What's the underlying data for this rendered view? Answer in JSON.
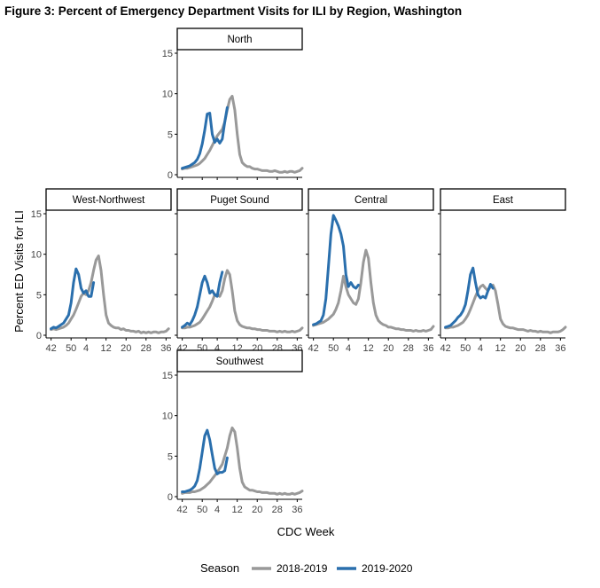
{
  "figure": {
    "title": "Figure 3: Percent of Emergency Department Visits for ILI by Region, Washington"
  },
  "chart_data": {
    "type": "line",
    "title": "Figure 3: Percent of Emergency Department Visits for ILI by Region, Washington",
    "xlabel": "CDC Week",
    "ylabel": "Percent ED Visits for ILI",
    "ylim": [
      0,
      15
    ],
    "y_ticks": [
      0,
      5,
      10,
      15
    ],
    "x_ticks": [
      "42",
      "50",
      "4",
      "12",
      "20",
      "28",
      "36"
    ],
    "x_tick_positions": [
      0,
      8,
      14,
      22,
      30,
      38,
      46
    ],
    "x_range": [
      -2,
      48
    ],
    "grid": false,
    "legend": {
      "title": "Season",
      "placement": "bottom",
      "entries": [
        {
          "name": "2018-2019",
          "color": "#999999"
        },
        {
          "name": "2019-2020",
          "color": "#2a6fad"
        }
      ]
    },
    "panels": [
      {
        "name": "North",
        "series": [
          {
            "name": "2018-2019",
            "values": [
              0.7,
              0.8,
              0.8,
              0.9,
              1.0,
              1.1,
              1.2,
              1.4,
              1.7,
              2.0,
              2.5,
              3.0,
              3.6,
              4.2,
              4.8,
              5.2,
              5.6,
              6.5,
              8.0,
              9.3,
              9.7,
              8.0,
              5.0,
              2.5,
              1.5,
              1.2,
              1.0,
              1.0,
              0.8,
              0.7,
              0.7,
              0.6,
              0.5,
              0.5,
              0.5,
              0.4,
              0.4,
              0.5,
              0.4,
              0.3,
              0.3,
              0.4,
              0.3,
              0.4,
              0.4,
              0.3,
              0.4,
              0.5,
              0.8
            ]
          },
          {
            "name": "2019-2020",
            "values": [
              0.8,
              0.9,
              1.0,
              1.1,
              1.3,
              1.5,
              1.9,
              2.6,
              3.8,
              5.5,
              7.5,
              7.6,
              5.0,
              4.0,
              4.4,
              3.9,
              4.4,
              6.5,
              8.3
            ]
          }
        ]
      },
      {
        "name": "West-Northwest",
        "series": [
          {
            "name": "2018-2019",
            "values": [
              0.7,
              0.8,
              0.7,
              0.8,
              0.9,
              1.0,
              1.2,
              1.5,
              2.0,
              2.5,
              3.2,
              4.0,
              4.8,
              5.2,
              5.0,
              5.5,
              6.5,
              8.0,
              9.3,
              9.8,
              8.0,
              5.0,
              2.5,
              1.5,
              1.2,
              1.0,
              0.9,
              0.9,
              0.7,
              0.8,
              0.6,
              0.6,
              0.5,
              0.5,
              0.4,
              0.5,
              0.3,
              0.4,
              0.3,
              0.4,
              0.3,
              0.4,
              0.4,
              0.3,
              0.4,
              0.4,
              0.5,
              0.8
            ]
          },
          {
            "name": "2019-2020",
            "values": [
              0.8,
              1.0,
              0.9,
              1.1,
              1.3,
              1.5,
              2.0,
              2.5,
              4.0,
              6.5,
              8.2,
              7.5,
              5.8,
              5.2,
              5.5,
              4.8,
              4.8,
              6.5
            ]
          }
        ]
      },
      {
        "name": "Puget Sound",
        "series": [
          {
            "name": "2018-2019",
            "values": [
              0.9,
              0.9,
              1.0,
              1.0,
              1.1,
              1.2,
              1.4,
              1.6,
              2.0,
              2.5,
              3.0,
              3.5,
              4.2,
              5.0,
              5.0,
              4.8,
              5.5,
              7.0,
              8.0,
              7.5,
              5.5,
              3.0,
              1.8,
              1.3,
              1.1,
              1.0,
              0.9,
              0.9,
              0.8,
              0.8,
              0.7,
              0.7,
              0.6,
              0.6,
              0.6,
              0.5,
              0.5,
              0.5,
              0.4,
              0.5,
              0.4,
              0.5,
              0.4,
              0.4,
              0.5,
              0.4,
              0.5,
              0.6,
              0.9
            ]
          },
          {
            "name": "2019-2020",
            "values": [
              1.0,
              1.2,
              1.5,
              1.3,
              1.8,
              2.5,
              3.5,
              5.0,
              6.5,
              7.3,
              6.5,
              5.2,
              5.5,
              5.0,
              4.8,
              6.5,
              7.8
            ]
          }
        ]
      },
      {
        "name": "Central",
        "series": [
          {
            "name": "2018-2019",
            "values": [
              1.2,
              1.3,
              1.4,
              1.5,
              1.6,
              1.8,
              2.0,
              2.3,
              2.6,
              3.2,
              4.0,
              5.5,
              7.3,
              6.0,
              5.0,
              4.5,
              4.0,
              3.8,
              4.5,
              6.5,
              9.0,
              10.5,
              9.5,
              6.5,
              4.0,
              2.5,
              1.8,
              1.5,
              1.3,
              1.2,
              1.0,
              1.0,
              0.9,
              0.8,
              0.8,
              0.7,
              0.7,
              0.6,
              0.6,
              0.6,
              0.5,
              0.6,
              0.5,
              0.5,
              0.6,
              0.5,
              0.6,
              0.7,
              1.1
            ]
          },
          {
            "name": "2019-2020",
            "values": [
              1.3,
              1.4,
              1.6,
              1.8,
              2.5,
              4.5,
              8.5,
              12.5,
              14.8,
              14.2,
              13.5,
              12.5,
              11.0,
              7.5,
              6.0,
              6.5,
              6.0,
              5.8,
              6.2
            ]
          }
        ]
      },
      {
        "name": "East",
        "series": [
          {
            "name": "2018-2019",
            "values": [
              0.9,
              0.9,
              1.0,
              1.0,
              1.1,
              1.2,
              1.4,
              1.6,
              2.0,
              2.5,
              3.2,
              4.0,
              4.8,
              5.5,
              6.0,
              6.2,
              5.8,
              5.5,
              6.0,
              6.2,
              5.5,
              3.8,
              2.0,
              1.4,
              1.1,
              1.0,
              0.9,
              0.9,
              0.8,
              0.7,
              0.7,
              0.7,
              0.6,
              0.5,
              0.6,
              0.5,
              0.5,
              0.4,
              0.5,
              0.4,
              0.4,
              0.4,
              0.3,
              0.4,
              0.4,
              0.4,
              0.5,
              0.7,
              1.0
            ]
          },
          {
            "name": "2019-2020",
            "values": [
              1.0,
              1.1,
              1.2,
              1.5,
              1.8,
              2.2,
              2.5,
              3.0,
              3.8,
              5.5,
              7.5,
              8.3,
              6.5,
              5.0,
              4.6,
              4.8,
              4.6,
              5.5,
              6.3,
              5.8
            ]
          }
        ]
      },
      {
        "name": "Southwest",
        "series": [
          {
            "name": "2018-2019",
            "values": [
              0.4,
              0.5,
              0.5,
              0.5,
              0.6,
              0.6,
              0.7,
              0.8,
              1.0,
              1.2,
              1.5,
              1.8,
              2.2,
              2.6,
              3.0,
              3.5,
              4.0,
              5.0,
              6.0,
              7.5,
              8.5,
              8.0,
              6.0,
              3.5,
              1.8,
              1.2,
              1.0,
              0.8,
              0.8,
              0.7,
              0.6,
              0.6,
              0.5,
              0.5,
              0.5,
              0.4,
              0.4,
              0.4,
              0.3,
              0.4,
              0.3,
              0.4,
              0.3,
              0.3,
              0.4,
              0.3,
              0.4,
              0.5,
              0.7
            ]
          },
          {
            "name": "2019-2020",
            "values": [
              0.6,
              0.6,
              0.7,
              0.8,
              1.0,
              1.3,
              2.0,
              3.5,
              5.5,
              7.5,
              8.2,
              7.0,
              5.2,
              3.5,
              2.8,
              3.0,
              3.0,
              3.2,
              4.8
            ]
          }
        ]
      }
    ]
  }
}
